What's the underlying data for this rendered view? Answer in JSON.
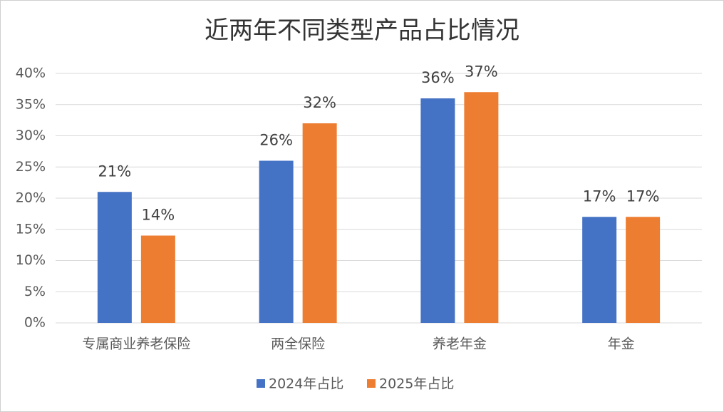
{
  "chart_data": {
    "type": "bar",
    "title": "近两年不同类型产品占比情况",
    "categories": [
      "专属商业养老保险",
      "两全保险",
      "养老年金",
      "年金"
    ],
    "series": [
      {
        "name": "2024年占比",
        "color": "#4472c4",
        "values": [
          21,
          26,
          36,
          17
        ],
        "value_labels": [
          "21%",
          "26%",
          "36%",
          "17%"
        ]
      },
      {
        "name": "2025年占比",
        "color": "#ed7d31",
        "values": [
          14,
          32,
          37,
          17
        ],
        "value_labels": [
          "14%",
          "32%",
          "37%",
          "17%"
        ]
      }
    ],
    "ylim": [
      0,
      40
    ],
    "yticks": [
      {
        "value": 0,
        "label": "0%"
      },
      {
        "value": 5,
        "label": "5%"
      },
      {
        "value": 10,
        "label": "10%"
      },
      {
        "value": 15,
        "label": "15%"
      },
      {
        "value": 20,
        "label": "20%"
      },
      {
        "value": 25,
        "label": "25%"
      },
      {
        "value": 30,
        "label": "30%"
      },
      {
        "value": 35,
        "label": "35%"
      },
      {
        "value": 40,
        "label": "40%"
      }
    ],
    "grid": true,
    "legend": "bottom"
  }
}
